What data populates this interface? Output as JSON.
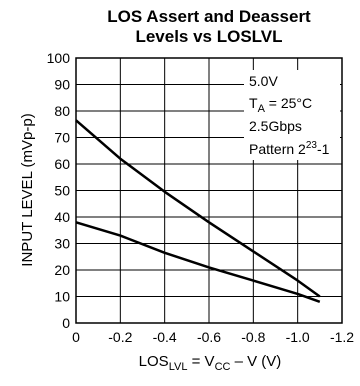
{
  "chart_data": {
    "type": "line",
    "title": "LOS Assert and Deassert",
    "subtitle": "Levels vs LOSLVL",
    "xlabel": {
      "base": "LOS",
      "base_sub": "LVL",
      "eq": " = V",
      "eq_sub": "CC",
      "tail": " – V (V)"
    },
    "ylabel": "INPUT LEVEL (mVp-p)",
    "xlim": [
      0,
      -1.2
    ],
    "ylim": [
      0,
      100
    ],
    "x_ticks": [
      0,
      -0.2,
      -0.4,
      -0.6,
      -0.8,
      -1.0,
      -1.2
    ],
    "x_tick_labels": [
      "0",
      "-0.2",
      "-0.4",
      "-0.6",
      "-0.8",
      "-1.0",
      "-1.2"
    ],
    "y_ticks": [
      0,
      10,
      20,
      30,
      40,
      50,
      60,
      70,
      80,
      90,
      100
    ],
    "y_tick_labels": [
      "0",
      "10",
      "20",
      "30",
      "40",
      "50",
      "60",
      "70",
      "80",
      "90",
      "100"
    ],
    "grid": true,
    "series": [
      {
        "x": [
          0,
          -0.2,
          -0.4,
          -0.6,
          -0.8,
          -1.0,
          -1.1
        ],
        "y": [
          76.5,
          62,
          49.5,
          38,
          27,
          16,
          10
        ]
      },
      {
        "x": [
          0,
          -0.2,
          -0.4,
          -0.6,
          -0.8,
          -1.0,
          -1.1
        ],
        "y": [
          38,
          33,
          26.5,
          21,
          16,
          11,
          8
        ]
      }
    ],
    "conditions": {
      "line1": "5.0V",
      "line2_a": "T",
      "line2_sub": "A",
      "line2_b": " = 25°C",
      "line3": "2.5Gbps",
      "line4_a": "Pattern 2",
      "line4_sup": "23",
      "line4_b": "-1"
    },
    "colors": {
      "line": "#000000",
      "grid": "#000000",
      "background": "#ffffff"
    }
  }
}
